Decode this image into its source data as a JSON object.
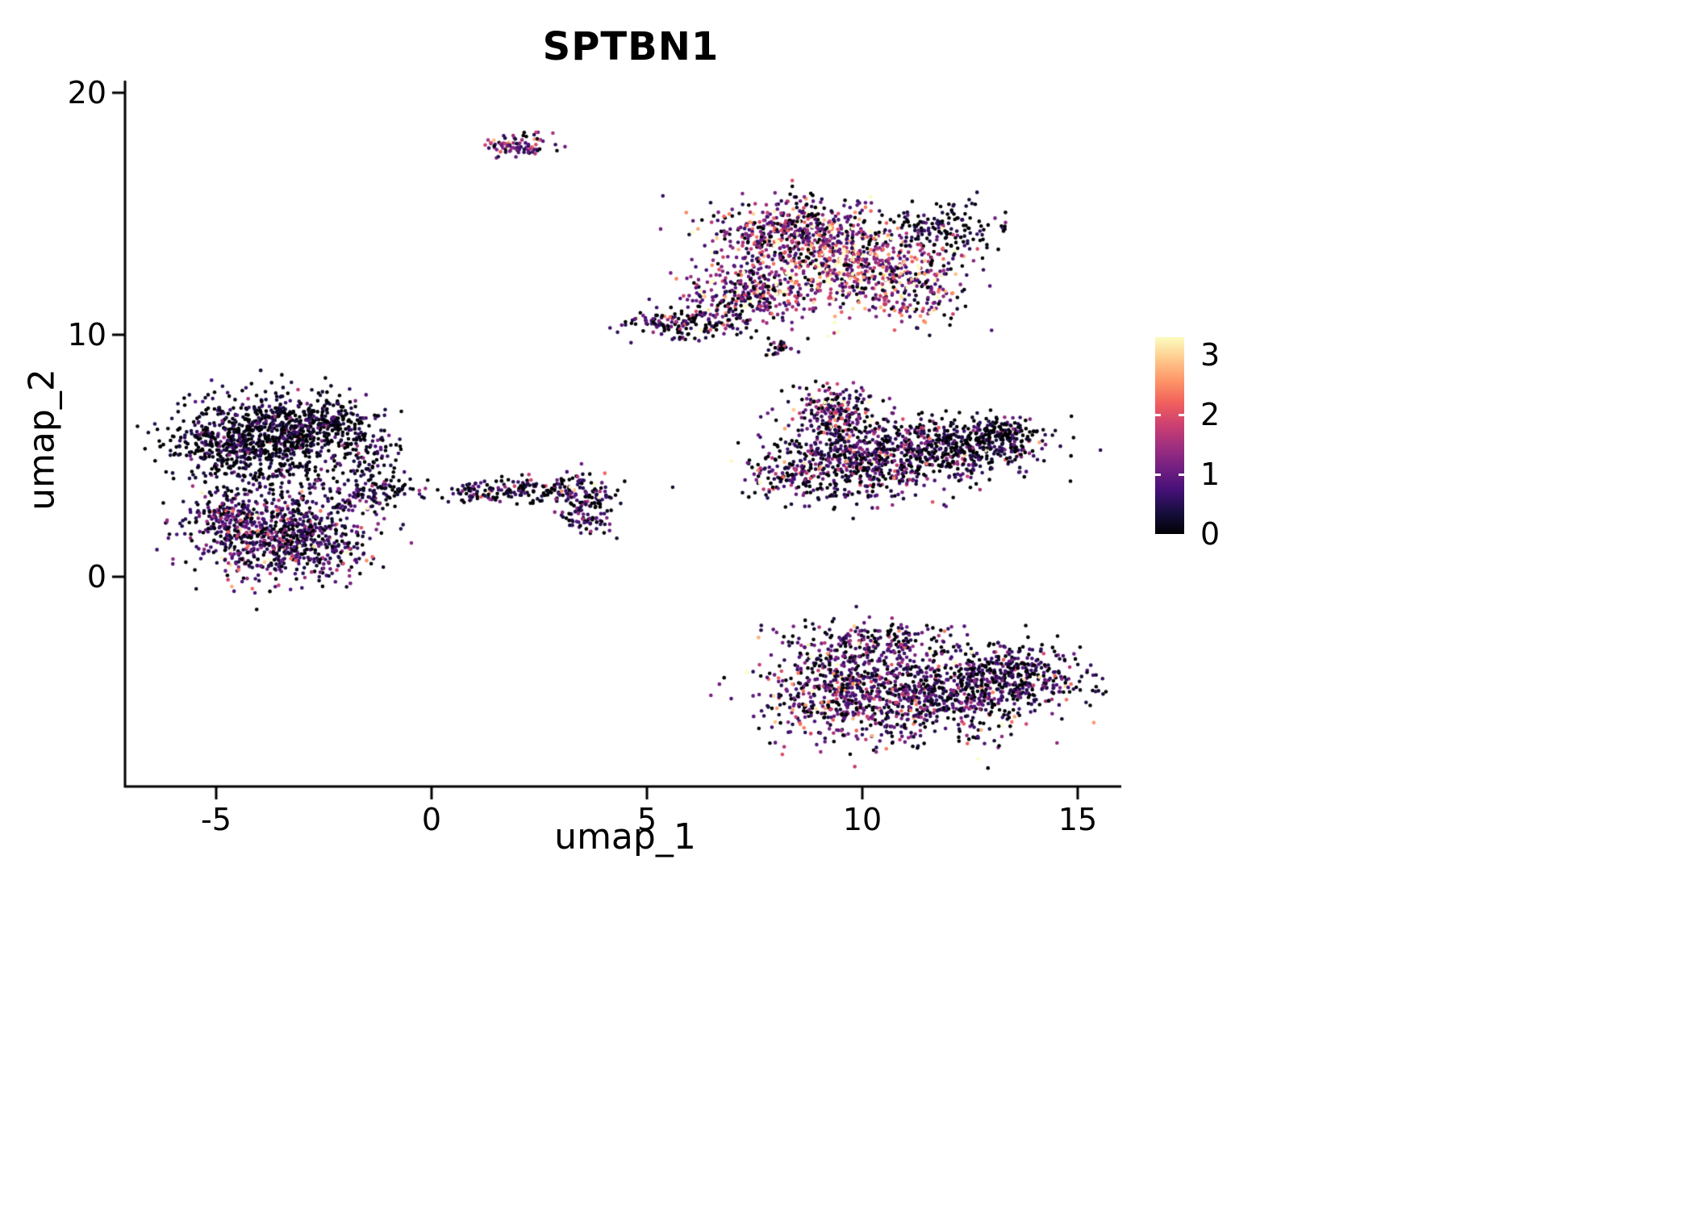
{
  "chart_data": {
    "type": "scatter",
    "title": "SPTBN1",
    "xlabel": "umap_1",
    "ylabel": "umap_2",
    "x_ticks": [
      -5,
      0,
      5,
      10,
      15
    ],
    "y_ticks": [
      0,
      10,
      20
    ],
    "xlim": [
      -7.1,
      16.0
    ],
    "ylim": [
      -8.7,
      20.5
    ],
    "grid": false,
    "background": "#ffffff",
    "axis_color": "#000000",
    "point_radius": 2.3,
    "seed": 42,
    "colorbar": {
      "position": "right",
      "ticks": [
        0,
        1,
        2,
        3
      ],
      "vmin": 0,
      "vmax": 3.3,
      "colormap": "magma",
      "stops": [
        "#000004",
        "#180f3e",
        "#451077",
        "#721f81",
        "#9f2f7f",
        "#cd4071",
        "#f1605d",
        "#fd9567",
        "#fec98d",
        "#fcfdbf"
      ]
    },
    "clusters": [
      {
        "name": "top-small",
        "cx": 2.0,
        "cy": 17.8,
        "sx": 0.42,
        "sy": 0.28,
        "n": 90,
        "expr_mean": 1.3,
        "zero_frac": 0.18
      },
      {
        "name": "topright-upperleft",
        "cx": 8.3,
        "cy": 14.3,
        "sx": 0.95,
        "sy": 0.7,
        "n": 450,
        "expr_mean": 1.5,
        "zero_frac": 0.2
      },
      {
        "name": "topright-core-high",
        "cx": 9.9,
        "cy": 12.9,
        "sx": 1.1,
        "sy": 0.9,
        "n": 620,
        "expr_mean": 1.9,
        "zero_frac": 0.12
      },
      {
        "name": "topright-lowerleft",
        "cx": 7.5,
        "cy": 11.8,
        "sx": 0.75,
        "sy": 0.75,
        "n": 350,
        "expr_mean": 1.4,
        "zero_frac": 0.2
      },
      {
        "name": "topright-tail",
        "cx": 5.9,
        "cy": 10.5,
        "sx": 0.7,
        "sy": 0.3,
        "n": 150,
        "expr_mean": 1.1,
        "zero_frac": 0.3
      },
      {
        "name": "topright-dark-edge",
        "cx": 11.9,
        "cy": 14.4,
        "sx": 0.65,
        "sy": 0.5,
        "n": 150,
        "expr_mean": 0.55,
        "zero_frac": 0.45
      },
      {
        "name": "topright-sparse-right",
        "cx": 11.4,
        "cy": 11.7,
        "sx": 0.55,
        "sy": 0.7,
        "n": 110,
        "expr_mean": 1.4,
        "zero_frac": 0.25
      },
      {
        "name": "tiny-mid",
        "cx": 8.1,
        "cy": 9.4,
        "sx": 0.17,
        "sy": 0.16,
        "n": 25,
        "expr_mean": 0.8,
        "zero_frac": 0.4
      },
      {
        "name": "midright-top-bump",
        "cx": 9.4,
        "cy": 6.9,
        "sx": 0.55,
        "sy": 0.5,
        "n": 200,
        "expr_mean": 1.2,
        "zero_frac": 0.25
      },
      {
        "name": "midright-main",
        "cx": 9.9,
        "cy": 4.9,
        "sx": 1.1,
        "sy": 0.8,
        "n": 650,
        "expr_mean": 1.0,
        "zero_frac": 0.3
      },
      {
        "name": "midright-arm",
        "cx": 12.2,
        "cy": 5.3,
        "sx": 1.0,
        "sy": 0.6,
        "n": 420,
        "expr_mean": 0.7,
        "zero_frac": 0.45
      },
      {
        "name": "midright-arm-tip",
        "cx": 13.3,
        "cy": 5.9,
        "sx": 0.4,
        "sy": 0.35,
        "n": 120,
        "expr_mean": 0.6,
        "zero_frac": 0.5
      },
      {
        "name": "midright-lowerleft",
        "cx": 8.2,
        "cy": 4.2,
        "sx": 0.45,
        "sy": 0.5,
        "n": 80,
        "expr_mean": 0.9,
        "zero_frac": 0.3
      },
      {
        "name": "left-upper-dark",
        "cx": -4.1,
        "cy": 5.6,
        "sx": 1.0,
        "sy": 0.95,
        "n": 900,
        "expr_mean": 0.5,
        "zero_frac": 0.48
      },
      {
        "name": "left-upper-right",
        "cx": -2.6,
        "cy": 6.4,
        "sx": 0.55,
        "sy": 0.55,
        "n": 220,
        "expr_mean": 0.5,
        "zero_frac": 0.5
      },
      {
        "name": "left-right-tail",
        "cx": -1.6,
        "cy": 5.0,
        "sx": 0.35,
        "sy": 0.85,
        "n": 120,
        "expr_mean": 0.6,
        "zero_frac": 0.4
      },
      {
        "name": "left-lower-purple",
        "cx": -3.4,
        "cy": 1.7,
        "sx": 1.05,
        "sy": 0.95,
        "n": 800,
        "expr_mean": 0.9,
        "zero_frac": 0.25
      },
      {
        "name": "left-lower-west",
        "cx": -4.8,
        "cy": 2.5,
        "sx": 0.45,
        "sy": 0.55,
        "n": 150,
        "expr_mean": 0.85,
        "zero_frac": 0.3
      },
      {
        "name": "left-connector",
        "cx": -1.9,
        "cy": 3.3,
        "sx": 0.5,
        "sy": 0.4,
        "n": 70,
        "expr_mean": 0.7,
        "zero_frac": 0.35
      },
      {
        "name": "left-connector-2",
        "cx": -0.8,
        "cy": 3.6,
        "sx": 0.4,
        "sy": 0.3,
        "n": 45,
        "expr_mean": 0.6,
        "zero_frac": 0.4
      },
      {
        "name": "mid-strip",
        "cx": 2.2,
        "cy": 3.6,
        "sx": 0.8,
        "sy": 0.28,
        "n": 160,
        "expr_mean": 0.7,
        "zero_frac": 0.4
      },
      {
        "name": "mid-blob",
        "cx": 3.6,
        "cy": 3.3,
        "sx": 0.38,
        "sy": 0.5,
        "n": 90,
        "expr_mean": 0.9,
        "zero_frac": 0.3
      },
      {
        "name": "mid-blob-low",
        "cx": 3.7,
        "cy": 2.3,
        "sx": 0.3,
        "sy": 0.3,
        "n": 50,
        "expr_mean": 0.9,
        "zero_frac": 0.3
      },
      {
        "name": "mid-strip-west",
        "cx": 0.9,
        "cy": 3.4,
        "sx": 0.28,
        "sy": 0.2,
        "n": 25,
        "expr_mean": 0.6,
        "zero_frac": 0.4
      },
      {
        "name": "bottom-left-lobe",
        "cx": 9.4,
        "cy": -4.6,
        "sx": 0.85,
        "sy": 1.1,
        "n": 480,
        "expr_mean": 1.1,
        "zero_frac": 0.25
      },
      {
        "name": "bottom-mid",
        "cx": 11.4,
        "cy": -5.0,
        "sx": 1.15,
        "sy": 0.95,
        "n": 620,
        "expr_mean": 1.0,
        "zero_frac": 0.28
      },
      {
        "name": "bottom-right-lobe",
        "cx": 13.4,
        "cy": -4.1,
        "sx": 0.95,
        "sy": 0.7,
        "n": 430,
        "expr_mean": 0.8,
        "zero_frac": 0.35
      },
      {
        "name": "bottom-top-edge",
        "cx": 10.4,
        "cy": -2.6,
        "sx": 0.95,
        "sy": 0.4,
        "n": 150,
        "expr_mean": 1.0,
        "zero_frac": 0.3
      }
    ]
  }
}
